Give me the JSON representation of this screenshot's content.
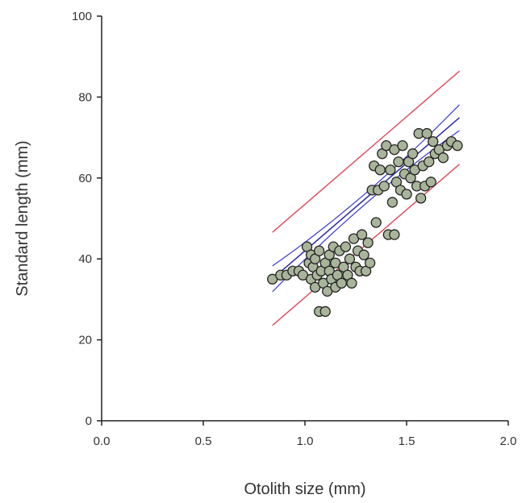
{
  "chart_data": {
    "type": "scatter",
    "title": "",
    "xlabel": "Otolith size (mm)",
    "ylabel": "Standard length (mm)",
    "xlim": [
      0,
      2.0
    ],
    "ylim": [
      0,
      100
    ],
    "x_ticks": [
      "0.0",
      "0.5",
      "1.0",
      "1.5",
      "2.0"
    ],
    "y_ticks": [
      "0",
      "20",
      "40",
      "60",
      "80",
      "100"
    ],
    "grid": false,
    "legend": "none",
    "colors": {
      "point_fill": "#a8b59a",
      "point_stroke": "#222222",
      "regression": "#2a2aa8",
      "confidence": "#3a3ad0",
      "prediction": "#e05060"
    },
    "series": [
      {
        "points": [
          [
            0.84,
            35
          ],
          [
            0.88,
            36
          ],
          [
            0.91,
            36
          ],
          [
            0.94,
            37
          ],
          [
            0.97,
            37
          ],
          [
            0.99,
            36
          ],
          [
            1.01,
            43
          ],
          [
            1.02,
            39
          ],
          [
            1.03,
            41
          ],
          [
            1.03,
            35
          ],
          [
            1.04,
            38
          ],
          [
            1.05,
            33
          ],
          [
            1.05,
            40
          ],
          [
            1.06,
            36
          ],
          [
            1.07,
            42
          ],
          [
            1.07,
            27
          ],
          [
            1.08,
            37
          ],
          [
            1.09,
            34
          ],
          [
            1.1,
            39
          ],
          [
            1.1,
            27
          ],
          [
            1.11,
            32
          ],
          [
            1.12,
            37
          ],
          [
            1.12,
            41
          ],
          [
            1.13,
            35
          ],
          [
            1.14,
            43
          ],
          [
            1.15,
            33
          ],
          [
            1.15,
            39
          ],
          [
            1.16,
            36
          ],
          [
            1.17,
            42
          ],
          [
            1.18,
            34
          ],
          [
            1.19,
            38
          ],
          [
            1.2,
            43
          ],
          [
            1.21,
            36
          ],
          [
            1.22,
            40
          ],
          [
            1.23,
            34
          ],
          [
            1.24,
            45
          ],
          [
            1.25,
            38
          ],
          [
            1.26,
            42
          ],
          [
            1.27,
            37
          ],
          [
            1.28,
            46
          ],
          [
            1.29,
            41
          ],
          [
            1.3,
            37
          ],
          [
            1.31,
            44
          ],
          [
            1.32,
            39
          ],
          [
            1.33,
            57
          ],
          [
            1.34,
            63
          ],
          [
            1.35,
            49
          ],
          [
            1.36,
            57
          ],
          [
            1.37,
            62
          ],
          [
            1.38,
            66
          ],
          [
            1.39,
            58
          ],
          [
            1.4,
            68
          ],
          [
            1.41,
            46
          ],
          [
            1.42,
            62
          ],
          [
            1.43,
            54
          ],
          [
            1.44,
            67
          ],
          [
            1.44,
            46
          ],
          [
            1.45,
            59
          ],
          [
            1.46,
            64
          ],
          [
            1.47,
            57
          ],
          [
            1.48,
            68
          ],
          [
            1.49,
            61
          ],
          [
            1.5,
            56
          ],
          [
            1.51,
            64
          ],
          [
            1.52,
            60
          ],
          [
            1.53,
            66
          ],
          [
            1.54,
            62
          ],
          [
            1.55,
            58
          ],
          [
            1.56,
            71
          ],
          [
            1.57,
            55
          ],
          [
            1.58,
            63
          ],
          [
            1.59,
            58
          ],
          [
            1.6,
            71
          ],
          [
            1.61,
            64
          ],
          [
            1.62,
            59
          ],
          [
            1.63,
            69
          ],
          [
            1.64,
            66
          ],
          [
            1.66,
            67
          ],
          [
            1.68,
            65
          ],
          [
            1.7,
            68
          ],
          [
            1.72,
            69
          ],
          [
            1.75,
            68
          ]
        ]
      }
    ],
    "regression": {
      "slope": 43.3,
      "intercept": -1.3,
      "x_range": [
        0.84,
        1.76
      ]
    },
    "confidence_band": {
      "half_width_min": 1.3,
      "half_width_max": 3.2,
      "x_center": 1.3
    },
    "prediction_band": {
      "half_width": 11.5
    }
  }
}
